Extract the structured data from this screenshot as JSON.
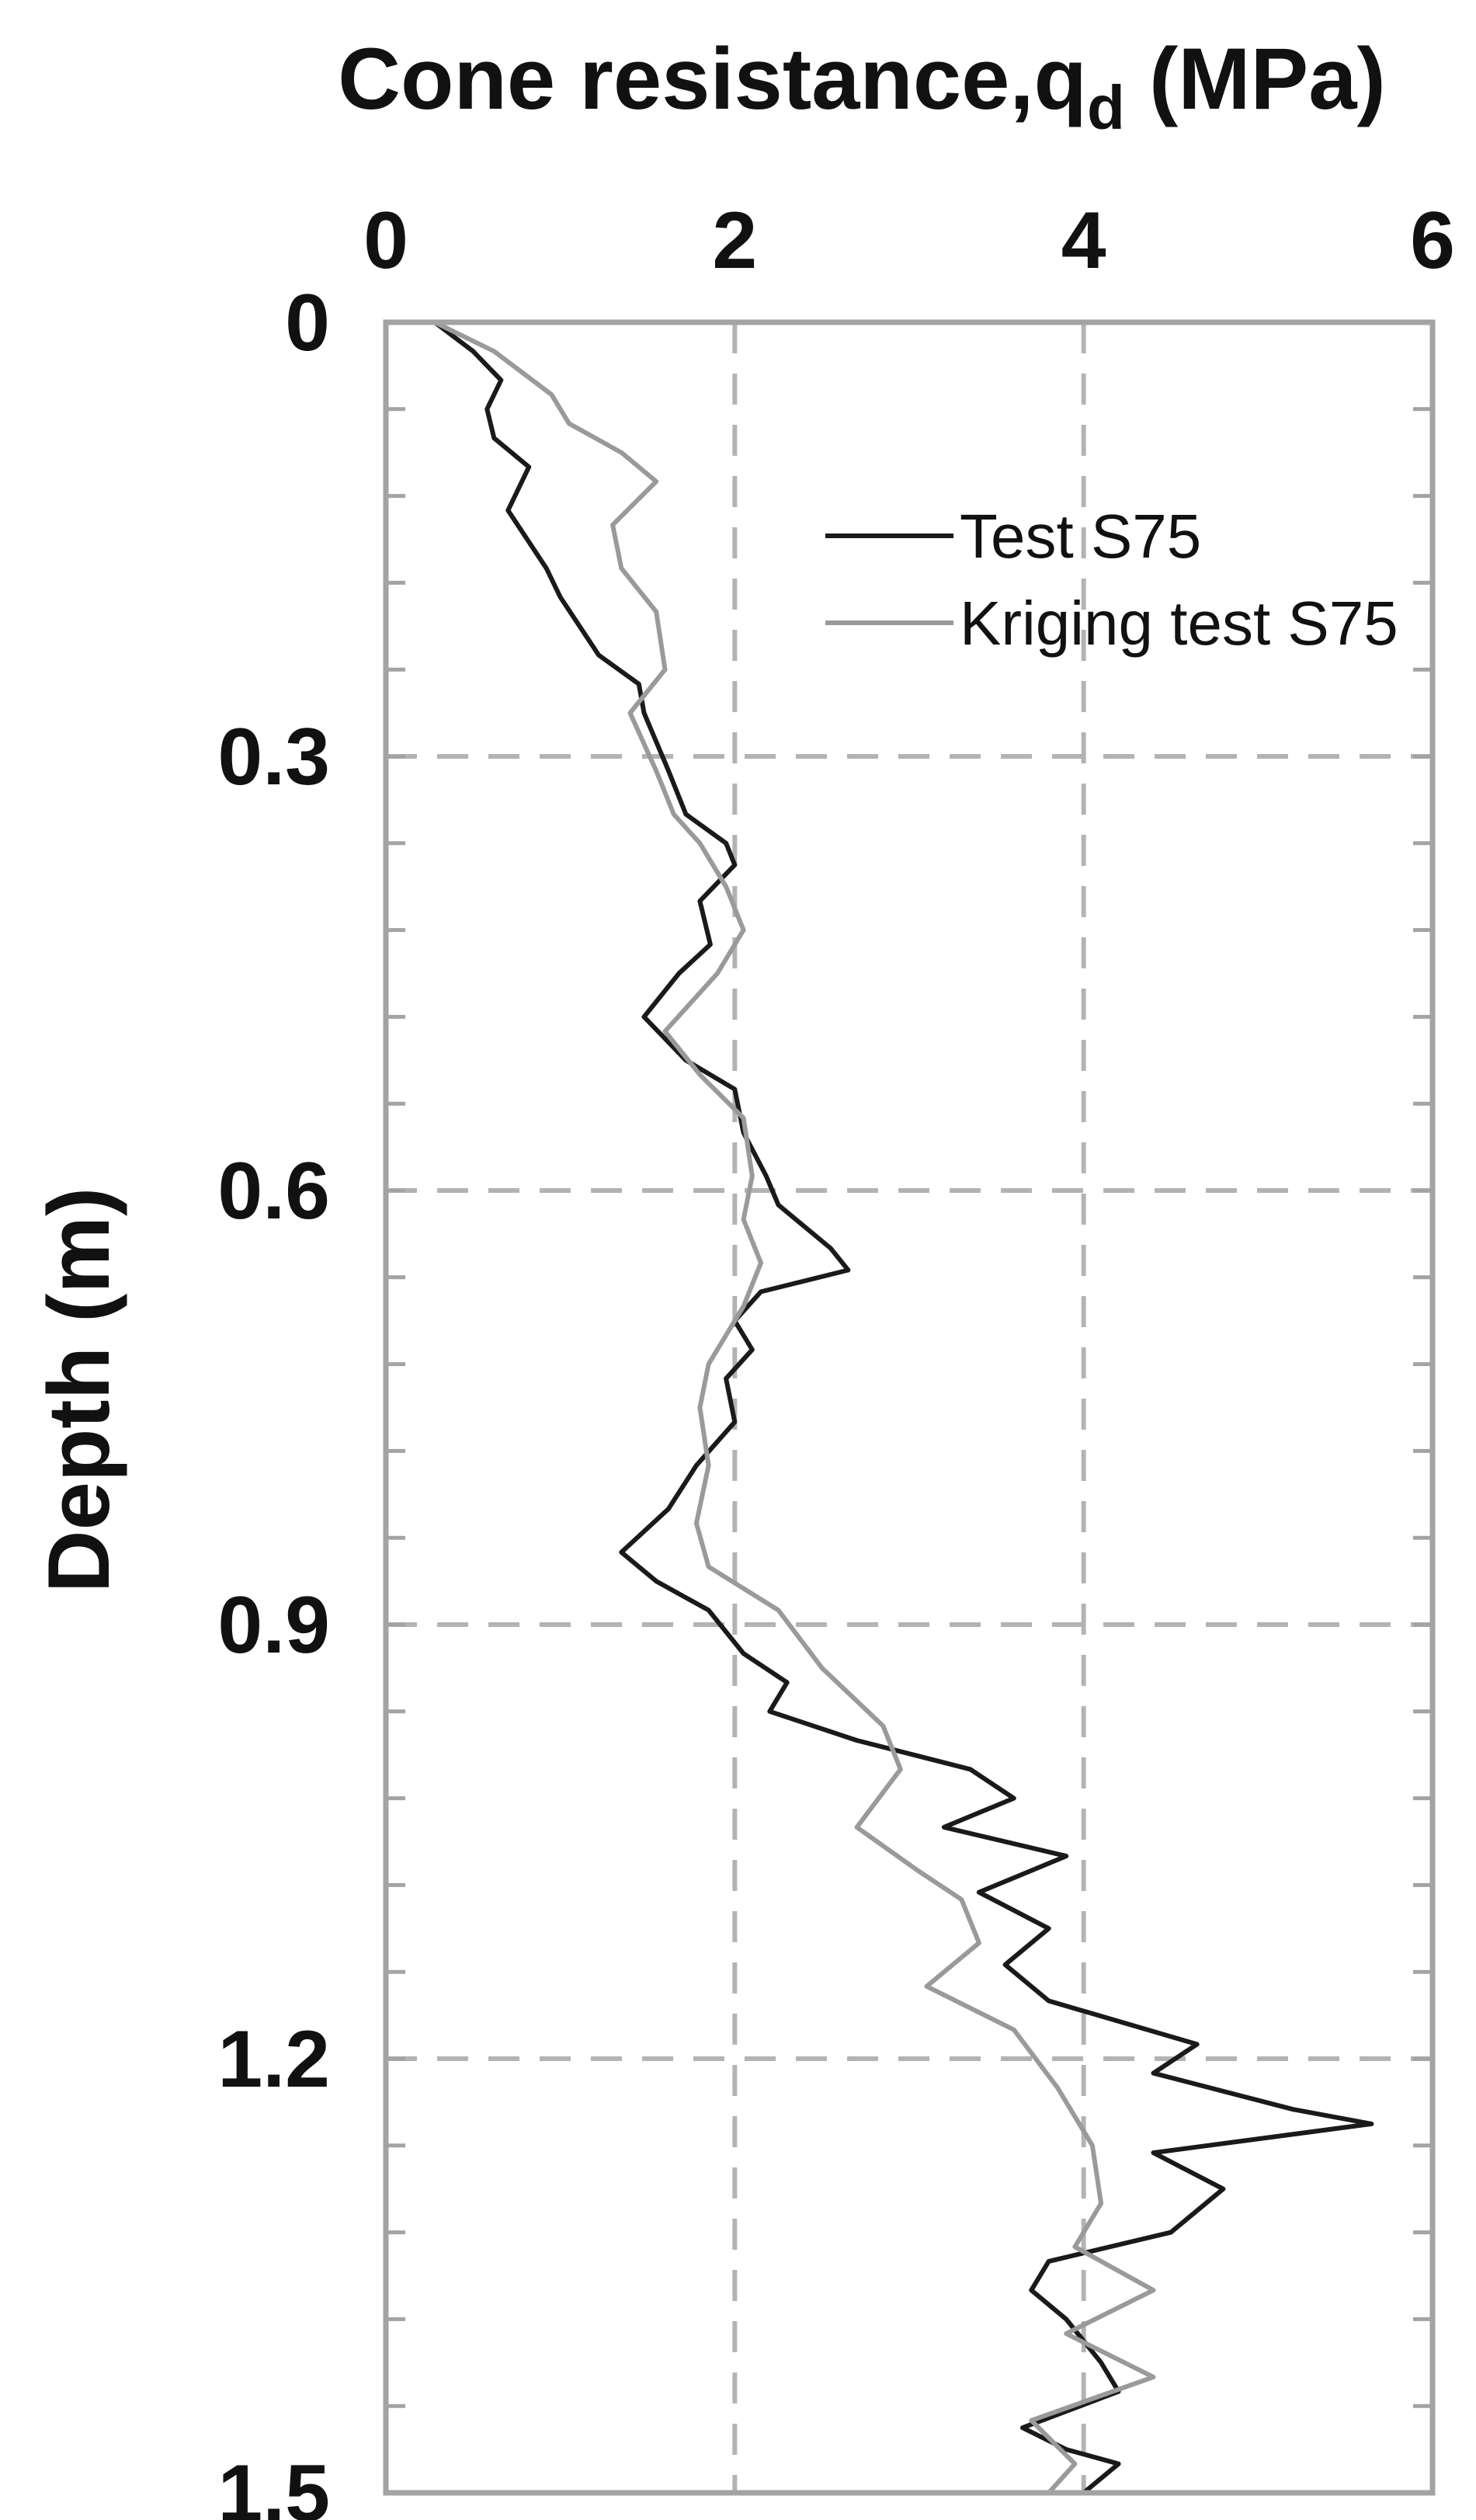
{
  "chart_data": {
    "type": "line",
    "xlabel": "Cone resistance,q",
    "xlabel_subscript": "d",
    "xlabel_unit": " (MPa)",
    "ylabel": "Depth (m)",
    "xlim": [
      0,
      6
    ],
    "ylim": [
      0,
      1.5
    ],
    "y_inverted": true,
    "x_axis_position": "top",
    "x_ticks": [
      0,
      2,
      4,
      6
    ],
    "x_tick_labels": [
      "0",
      "2",
      "4",
      "6"
    ],
    "y_ticks": [
      0,
      0.3,
      0.6,
      0.9,
      1.2,
      1.5
    ],
    "y_tick_labels": [
      "0",
      "0.3",
      "0.6",
      "0.9",
      "1.2",
      "1.5"
    ],
    "y_minor_step": 0.06,
    "grid": "dashed, at major ticks",
    "legend_position": "top-right",
    "colors": {
      "frame": "#a3a3a3",
      "grid": "#b3b3b3",
      "text": "#111111"
    },
    "series": [
      {
        "name": "Test S75",
        "color": "#1a1a1a",
        "points": [
          [
            0.28,
            0.0
          ],
          [
            0.5,
            0.02
          ],
          [
            0.66,
            0.04
          ],
          [
            0.58,
            0.06
          ],
          [
            0.62,
            0.08
          ],
          [
            0.82,
            0.1
          ],
          [
            0.7,
            0.13
          ],
          [
            0.92,
            0.17
          ],
          [
            1.0,
            0.19
          ],
          [
            1.22,
            0.23
          ],
          [
            1.45,
            0.25
          ],
          [
            1.48,
            0.27
          ],
          [
            1.62,
            0.31
          ],
          [
            1.72,
            0.34
          ],
          [
            1.95,
            0.36
          ],
          [
            2.0,
            0.375
          ],
          [
            1.8,
            0.4
          ],
          [
            1.86,
            0.43
          ],
          [
            1.68,
            0.45
          ],
          [
            1.48,
            0.48
          ],
          [
            1.72,
            0.51
          ],
          [
            2.0,
            0.53
          ],
          [
            2.05,
            0.56
          ],
          [
            2.18,
            0.59
          ],
          [
            2.25,
            0.61
          ],
          [
            2.55,
            0.64
          ],
          [
            2.65,
            0.655
          ],
          [
            2.15,
            0.67
          ],
          [
            2.0,
            0.69
          ],
          [
            2.1,
            0.71
          ],
          [
            1.95,
            0.73
          ],
          [
            2.0,
            0.76
          ],
          [
            1.78,
            0.79
          ],
          [
            1.62,
            0.82
          ],
          [
            1.35,
            0.85
          ],
          [
            1.55,
            0.87
          ],
          [
            1.85,
            0.89
          ],
          [
            2.05,
            0.92
          ],
          [
            2.3,
            0.94
          ],
          [
            2.2,
            0.96
          ],
          [
            2.7,
            0.98
          ],
          [
            3.35,
            1.0
          ],
          [
            3.6,
            1.02
          ],
          [
            3.2,
            1.04
          ],
          [
            3.9,
            1.06
          ],
          [
            3.4,
            1.085
          ],
          [
            3.8,
            1.11
          ],
          [
            3.55,
            1.135
          ],
          [
            3.8,
            1.16
          ],
          [
            4.65,
            1.19
          ],
          [
            4.4,
            1.21
          ],
          [
            5.2,
            1.235
          ],
          [
            5.65,
            1.245
          ],
          [
            4.4,
            1.265
          ],
          [
            4.8,
            1.29
          ],
          [
            4.5,
            1.32
          ],
          [
            3.8,
            1.34
          ],
          [
            3.7,
            1.36
          ],
          [
            3.9,
            1.38
          ],
          [
            4.1,
            1.41
          ],
          [
            4.2,
            1.43
          ],
          [
            3.65,
            1.455
          ],
          [
            3.9,
            1.47
          ],
          [
            4.2,
            1.48
          ],
          [
            4.0,
            1.5
          ]
        ]
      },
      {
        "name": "Kriging test S75",
        "color": "#9a9a9a",
        "points": [
          [
            0.28,
            0.0
          ],
          [
            0.62,
            0.02
          ],
          [
            0.95,
            0.05
          ],
          [
            1.05,
            0.07
          ],
          [
            1.35,
            0.09
          ],
          [
            1.55,
            0.11
          ],
          [
            1.3,
            0.14
          ],
          [
            1.35,
            0.17
          ],
          [
            1.55,
            0.2
          ],
          [
            1.6,
            0.24
          ],
          [
            1.4,
            0.27
          ],
          [
            1.55,
            0.31
          ],
          [
            1.65,
            0.34
          ],
          [
            1.8,
            0.36
          ],
          [
            1.95,
            0.39
          ],
          [
            2.05,
            0.42
          ],
          [
            1.9,
            0.45
          ],
          [
            1.6,
            0.49
          ],
          [
            1.8,
            0.52
          ],
          [
            2.05,
            0.55
          ],
          [
            2.1,
            0.59
          ],
          [
            2.05,
            0.62
          ],
          [
            2.15,
            0.65
          ],
          [
            2.05,
            0.68
          ],
          [
            1.85,
            0.72
          ],
          [
            1.8,
            0.75
          ],
          [
            1.85,
            0.79
          ],
          [
            1.78,
            0.83
          ],
          [
            1.85,
            0.86
          ],
          [
            2.25,
            0.89
          ],
          [
            2.5,
            0.93
          ],
          [
            2.85,
            0.97
          ],
          [
            2.95,
            1.0
          ],
          [
            2.7,
            1.04
          ],
          [
            3.05,
            1.07
          ],
          [
            3.3,
            1.09
          ],
          [
            3.4,
            1.12
          ],
          [
            3.1,
            1.15
          ],
          [
            3.6,
            1.18
          ],
          [
            3.85,
            1.22
          ],
          [
            4.05,
            1.26
          ],
          [
            4.1,
            1.3
          ],
          [
            3.95,
            1.33
          ],
          [
            4.4,
            1.36
          ],
          [
            3.9,
            1.39
          ],
          [
            4.4,
            1.42
          ],
          [
            3.7,
            1.45
          ],
          [
            3.95,
            1.48
          ],
          [
            3.8,
            1.5
          ]
        ]
      }
    ]
  }
}
